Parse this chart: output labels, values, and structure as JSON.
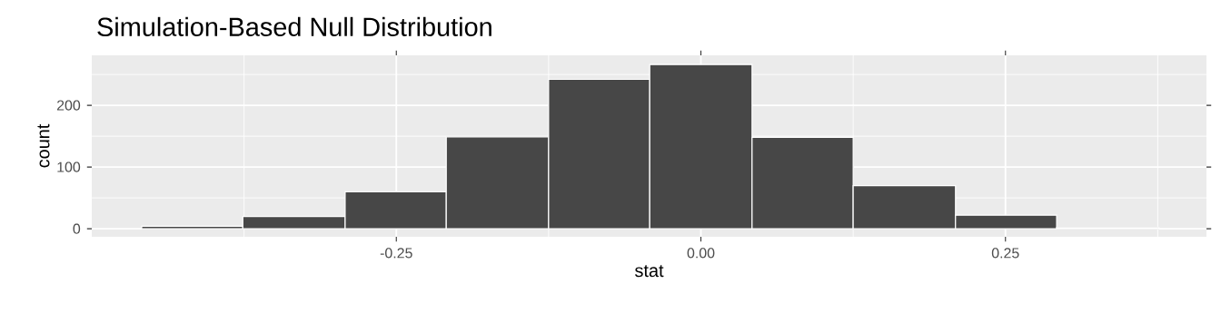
{
  "chart_data": {
    "type": "histogram",
    "title": "Simulation-Based Null Distribution",
    "xlabel": "stat",
    "ylabel": "count",
    "bins": [
      -0.459,
      -0.376,
      -0.292,
      -0.209,
      -0.125,
      -0.042,
      0.042,
      0.125,
      0.209,
      0.292,
      0.376
    ],
    "values": [
      4,
      20,
      60,
      149,
      242,
      266,
      148,
      70,
      22,
      2
    ],
    "color": "#474747",
    "xlim": [
      -0.5,
      0.415
    ],
    "ylim": [
      -13,
      281
    ],
    "xticks": [
      {
        "value": -0.25,
        "label": "-0.25"
      },
      {
        "value": 0,
        "label": "0.00"
      },
      {
        "value": 0.25,
        "label": "0.25"
      }
    ],
    "yticks": [
      0,
      100,
      200
    ],
    "grid": true
  }
}
